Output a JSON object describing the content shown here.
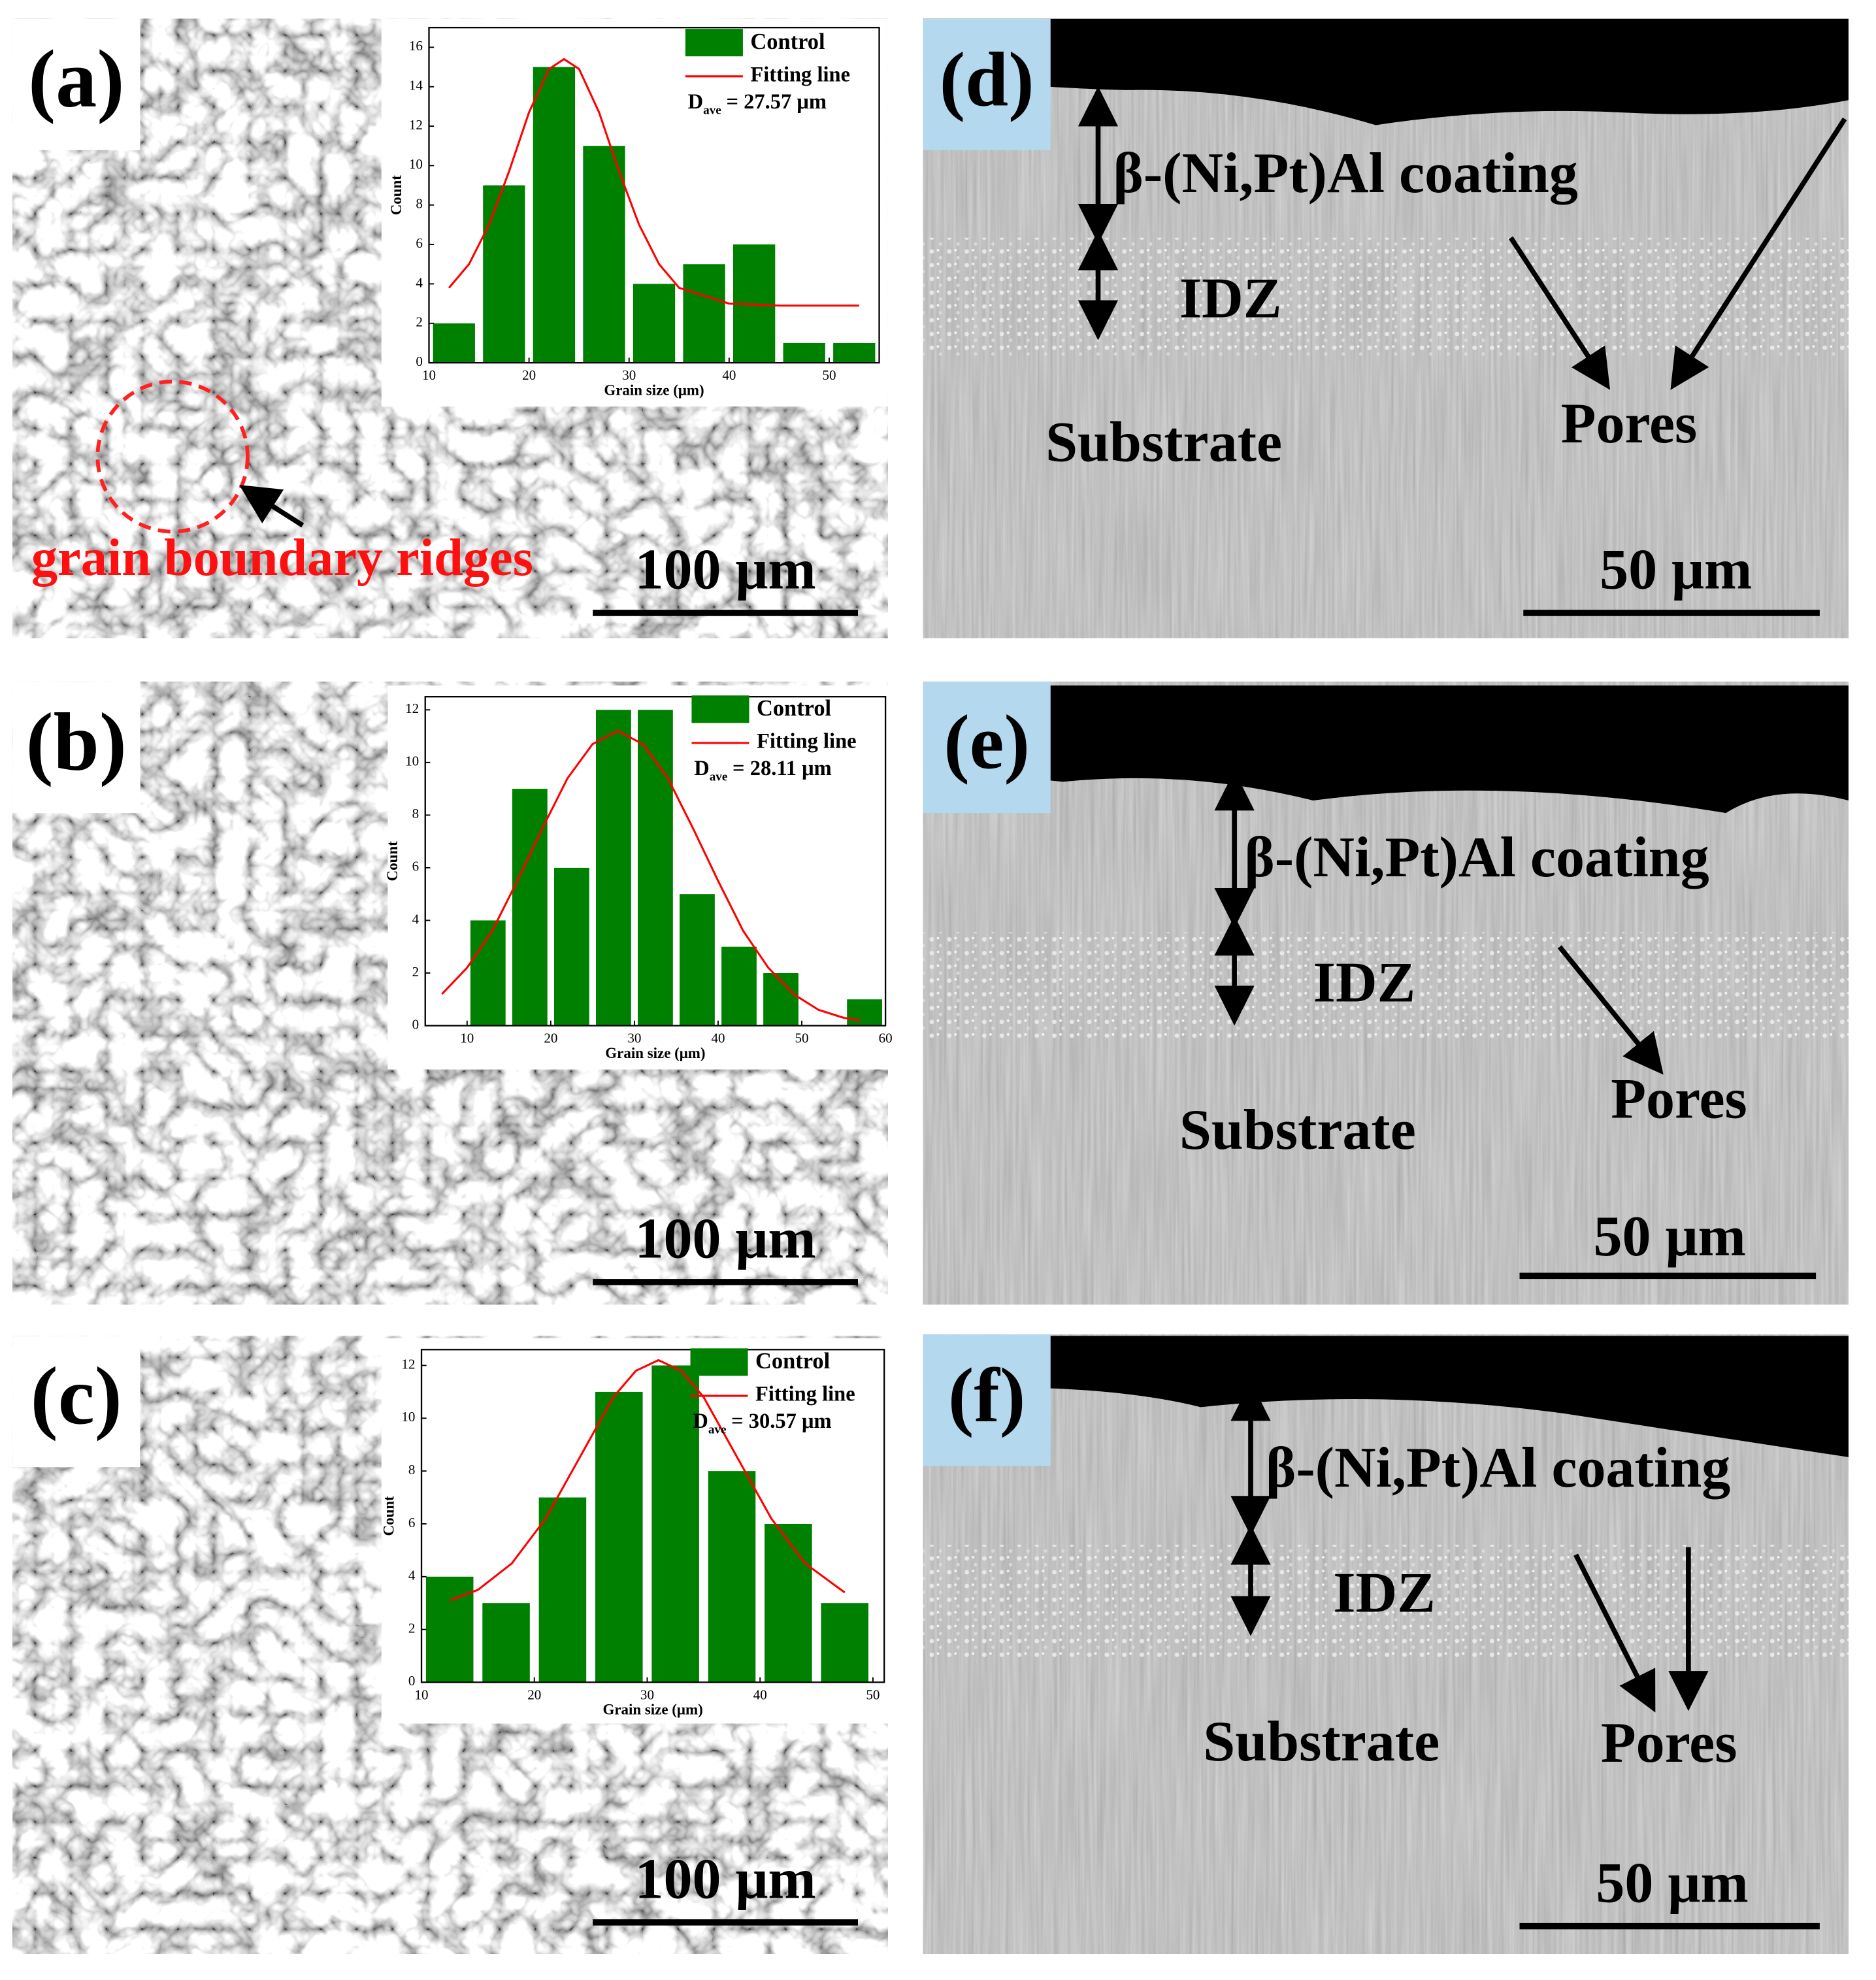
{
  "panels": [
    {
      "label": "(a)",
      "annotation": "grain boundary ridges",
      "scale_bar": "100 μm"
    },
    {
      "label": "(b)",
      "scale_bar": "100 μm"
    },
    {
      "label": "(c)",
      "scale_bar": "100 μm"
    },
    {
      "label": "(d)",
      "coating": "β-(Ni,Pt)Al coating",
      "idz": "IDZ",
      "substrate": "Substrate",
      "pores": "Pores",
      "scale_bar": "50 μm"
    },
    {
      "label": "(e)",
      "coating": "β-(Ni,Pt)Al coating",
      "idz": "IDZ",
      "substrate": "Substrate",
      "pores": "Pores",
      "scale_bar": "50 μm"
    },
    {
      "label": "(f)",
      "coating": "β-(Ni,Pt)Al coating",
      "idz": "IDZ",
      "substrate": "Substrate",
      "pores": "Pores",
      "scale_bar": "50 μm"
    }
  ],
  "chart_data": [
    {
      "type": "histogram",
      "xlabel": "Grain size (μm)",
      "ylabel": "Count",
      "bins": [
        10,
        15,
        20,
        25,
        30,
        35,
        40,
        45,
        50,
        55
      ],
      "values": [
        2,
        9,
        15,
        11,
        4,
        5,
        6,
        1,
        1
      ],
      "bar_name": "Control",
      "color": "#008000",
      "fit": {
        "name": "Fitting line",
        "color": "#ff0000",
        "x": [
          12,
          14,
          16,
          18,
          20,
          22,
          23.5,
          25,
          27,
          29,
          31,
          33,
          35,
          40,
          45,
          53
        ],
        "y": [
          3.8,
          5.0,
          7.0,
          9.7,
          12.7,
          14.9,
          15.4,
          14.9,
          12.7,
          9.7,
          7.0,
          5.0,
          3.8,
          3.0,
          2.9,
          2.9
        ]
      },
      "annotation": {
        "symbol": "D",
        "subscript": "ave",
        "text": "= 27.57 μm"
      },
      "xlim": [
        10,
        55
      ],
      "ylim": [
        0,
        17
      ],
      "xticks": [
        10,
        20,
        30,
        40,
        50
      ],
      "yticks": [
        0,
        2,
        4,
        6,
        8,
        10,
        12,
        14,
        16
      ]
    },
    {
      "type": "histogram",
      "xlabel": "Grain size (μm)",
      "ylabel": "Count",
      "bins": [
        10,
        15,
        20,
        25,
        30,
        35,
        40,
        45,
        50,
        55,
        60
      ],
      "values": [
        4,
        9,
        6,
        12,
        12,
        5,
        3,
        2,
        0,
        1
      ],
      "bar_name": "Control",
      "color": "#008000",
      "fit": {
        "name": "Fitting line",
        "color": "#ff0000",
        "x": [
          7,
          10,
          13,
          16,
          19,
          22,
          25,
          28,
          31,
          34,
          37,
          40,
          43,
          46,
          49,
          52,
          55,
          57
        ],
        "y": [
          1.2,
          2.2,
          3.6,
          5.5,
          7.5,
          9.4,
          10.7,
          11.2,
          10.7,
          9.4,
          7.5,
          5.5,
          3.6,
          2.2,
          1.2,
          0.6,
          0.3,
          0.2
        ]
      },
      "annotation": {
        "symbol": "D",
        "subscript": "ave",
        "text": "= 28.11 μm"
      },
      "xlim": [
        5,
        60
      ],
      "ylim": [
        0,
        12.5
      ],
      "xticks": [
        10,
        20,
        30,
        40,
        50,
        60
      ],
      "yticks": [
        0,
        2,
        4,
        6,
        8,
        10,
        12
      ]
    },
    {
      "type": "histogram",
      "xlabel": "Grain size (μm)",
      "ylabel": "Count",
      "bins": [
        10,
        15,
        20,
        25,
        30,
        35,
        40,
        45,
        50
      ],
      "values": [
        4,
        3,
        7,
        11,
        12,
        8,
        6,
        3
      ],
      "bar_name": "Control",
      "color": "#008000",
      "fit": {
        "name": "Fitting line",
        "color": "#ff0000",
        "x": [
          12.5,
          15,
          18,
          21,
          24,
          27,
          29,
          31,
          33,
          35,
          38,
          41,
          44,
          47.5
        ],
        "y": [
          3.1,
          3.5,
          4.5,
          6.2,
          8.5,
          10.8,
          11.8,
          12.2,
          11.8,
          10.8,
          8.5,
          6.2,
          4.5,
          3.4
        ]
      },
      "annotation": {
        "symbol": "D",
        "subscript": "ave",
        "text": "= 30.57 μm"
      },
      "xlim": [
        10,
        51
      ],
      "ylim": [
        0,
        12.6
      ],
      "xticks": [
        10,
        20,
        30,
        40,
        50
      ],
      "yticks": [
        0,
        2,
        4,
        6,
        8,
        10,
        12
      ]
    }
  ]
}
